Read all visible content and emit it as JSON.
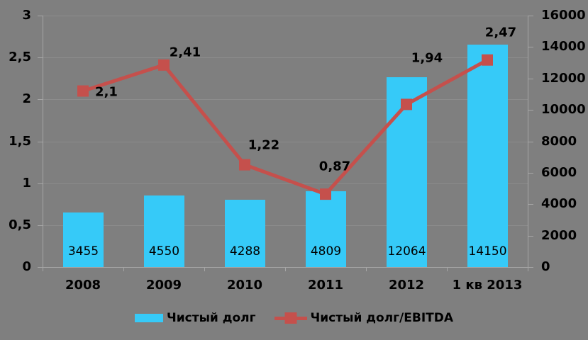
{
  "chart_data": {
    "type": "combo-bar-line",
    "categories": [
      "2008",
      "2009",
      "2010",
      "2011",
      "2012",
      "1 кв 2013"
    ],
    "series": [
      {
        "name": "Чистый долг",
        "type": "bar",
        "axis": "right",
        "color": "#36CAF8",
        "values": [
          3455,
          4550,
          4288,
          4809,
          12064,
          14150
        ],
        "labels": [
          "3455",
          "4550",
          "4288",
          "4809",
          "12064",
          "14150"
        ]
      },
      {
        "name": "Чистый долг/EBITDA",
        "type": "line",
        "axis": "left",
        "color": "#C5504C",
        "values": [
          2.1,
          2.41,
          1.22,
          0.87,
          1.94,
          2.47
        ],
        "labels": [
          "2,1",
          "2,41",
          "1,22",
          "0,87",
          "1,94",
          "2,47"
        ],
        "label_offsets": [
          [
            33,
            2
          ],
          [
            30,
            -18
          ],
          [
            27,
            -28
          ],
          [
            13,
            -39
          ],
          [
            29,
            -65
          ],
          [
            19,
            -39
          ]
        ]
      }
    ],
    "left_axis": {
      "min": 0,
      "max": 3,
      "step": 0.5,
      "tick_labels_top_to_bottom": [
        "3",
        "2,5",
        "2",
        "1,5",
        "1",
        "0,5",
        "0"
      ]
    },
    "right_axis": {
      "min": 0,
      "max": 16000,
      "step": 2000,
      "tick_labels_top_to_bottom": [
        "16000",
        "14000",
        "12000",
        "10000",
        "8000",
        "6000",
        "4000",
        "2000",
        "0"
      ]
    },
    "grid": true,
    "legend_position": "bottom",
    "colors": {
      "background": "#7F7F7F",
      "gridline": "#8C8C8C",
      "axis_line": "#A6A6A6",
      "text": "#000000"
    }
  },
  "legend": {
    "items": [
      {
        "label": "Чистый долг",
        "swatch": "bar-swatch"
      },
      {
        "label": "Чистый долг/EBITDA",
        "swatch": "line-swatch"
      }
    ]
  }
}
